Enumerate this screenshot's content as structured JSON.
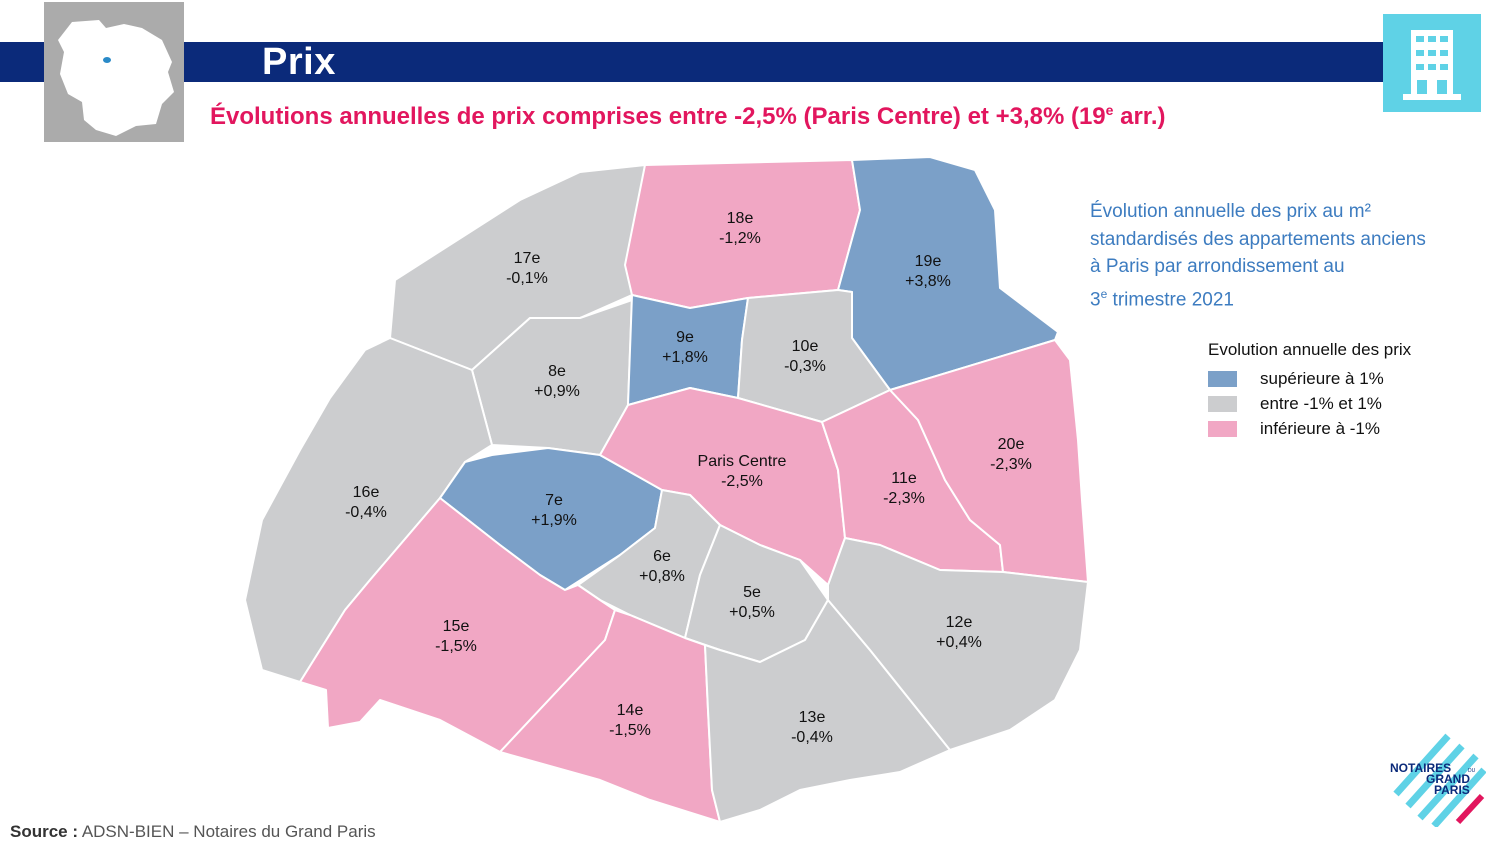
{
  "header": {
    "title": "Prix",
    "subtitle_main": "Évolutions annuelles de prix comprises entre -2,5% (Paris Centre) et +3,8% (19",
    "subtitle_sup": "e",
    "subtitle_end": " arr.)"
  },
  "description": {
    "line1": "Évolution annuelle des prix au m²",
    "line2": "standardisés des appartements anciens",
    "line3": "à Paris par arrondissement au",
    "line4_sup_prefix": "3",
    "line4_sup": "e",
    "line4_rest": " trimestre 2021"
  },
  "legend": {
    "title": "Evolution annuelle des prix",
    "items": [
      {
        "label": "supérieure à 1%",
        "color": "#7ba0c8"
      },
      {
        "label": "entre -1% et 1%",
        "color": "#cccdcf"
      },
      {
        "label": "inférieure à -1%",
        "color": "#f1a7c4"
      }
    ]
  },
  "colors": {
    "header_bar": "#0b2a7a",
    "subtitle": "#e2165e",
    "description": "#3d7cc0",
    "building_icon_bg": "#5fd2e6"
  },
  "arrondissements": [
    {
      "name": "17e",
      "value": "-0,1%",
      "category": "mid"
    },
    {
      "name": "18e",
      "value": "-1,2%",
      "category": "low"
    },
    {
      "name": "19e",
      "value": "+3,8%",
      "category": "high"
    },
    {
      "name": "8e",
      "value": "+0,9%",
      "category": "mid"
    },
    {
      "name": "9e",
      "value": "+1,8%",
      "category": "high"
    },
    {
      "name": "10e",
      "value": "-0,3%",
      "category": "mid"
    },
    {
      "name": "16e",
      "value": "-0,4%",
      "category": "mid"
    },
    {
      "name": "7e",
      "value": "+1,9%",
      "category": "high"
    },
    {
      "name": "Paris Centre",
      "value": "-2,5%",
      "category": "low"
    },
    {
      "name": "11e",
      "value": "-2,3%",
      "category": "low"
    },
    {
      "name": "20e",
      "value": "-2,3%",
      "category": "low"
    },
    {
      "name": "6e",
      "value": "+0,8%",
      "category": "mid"
    },
    {
      "name": "5e",
      "value": "+0,5%",
      "category": "mid"
    },
    {
      "name": "15e",
      "value": "-1,5%",
      "category": "low"
    },
    {
      "name": "14e",
      "value": "-1,5%",
      "category": "low"
    },
    {
      "name": "13e",
      "value": "-0,4%",
      "category": "mid"
    },
    {
      "name": "12e",
      "value": "+0,4%",
      "category": "mid"
    }
  ],
  "source": {
    "label": "Source :",
    "text": " ADSN-BIEN – Notaires du Grand Paris"
  },
  "logo": {
    "line1": "NOTAIRES",
    "line2": "GRAND",
    "line3": "PARIS",
    "small": "DU"
  }
}
